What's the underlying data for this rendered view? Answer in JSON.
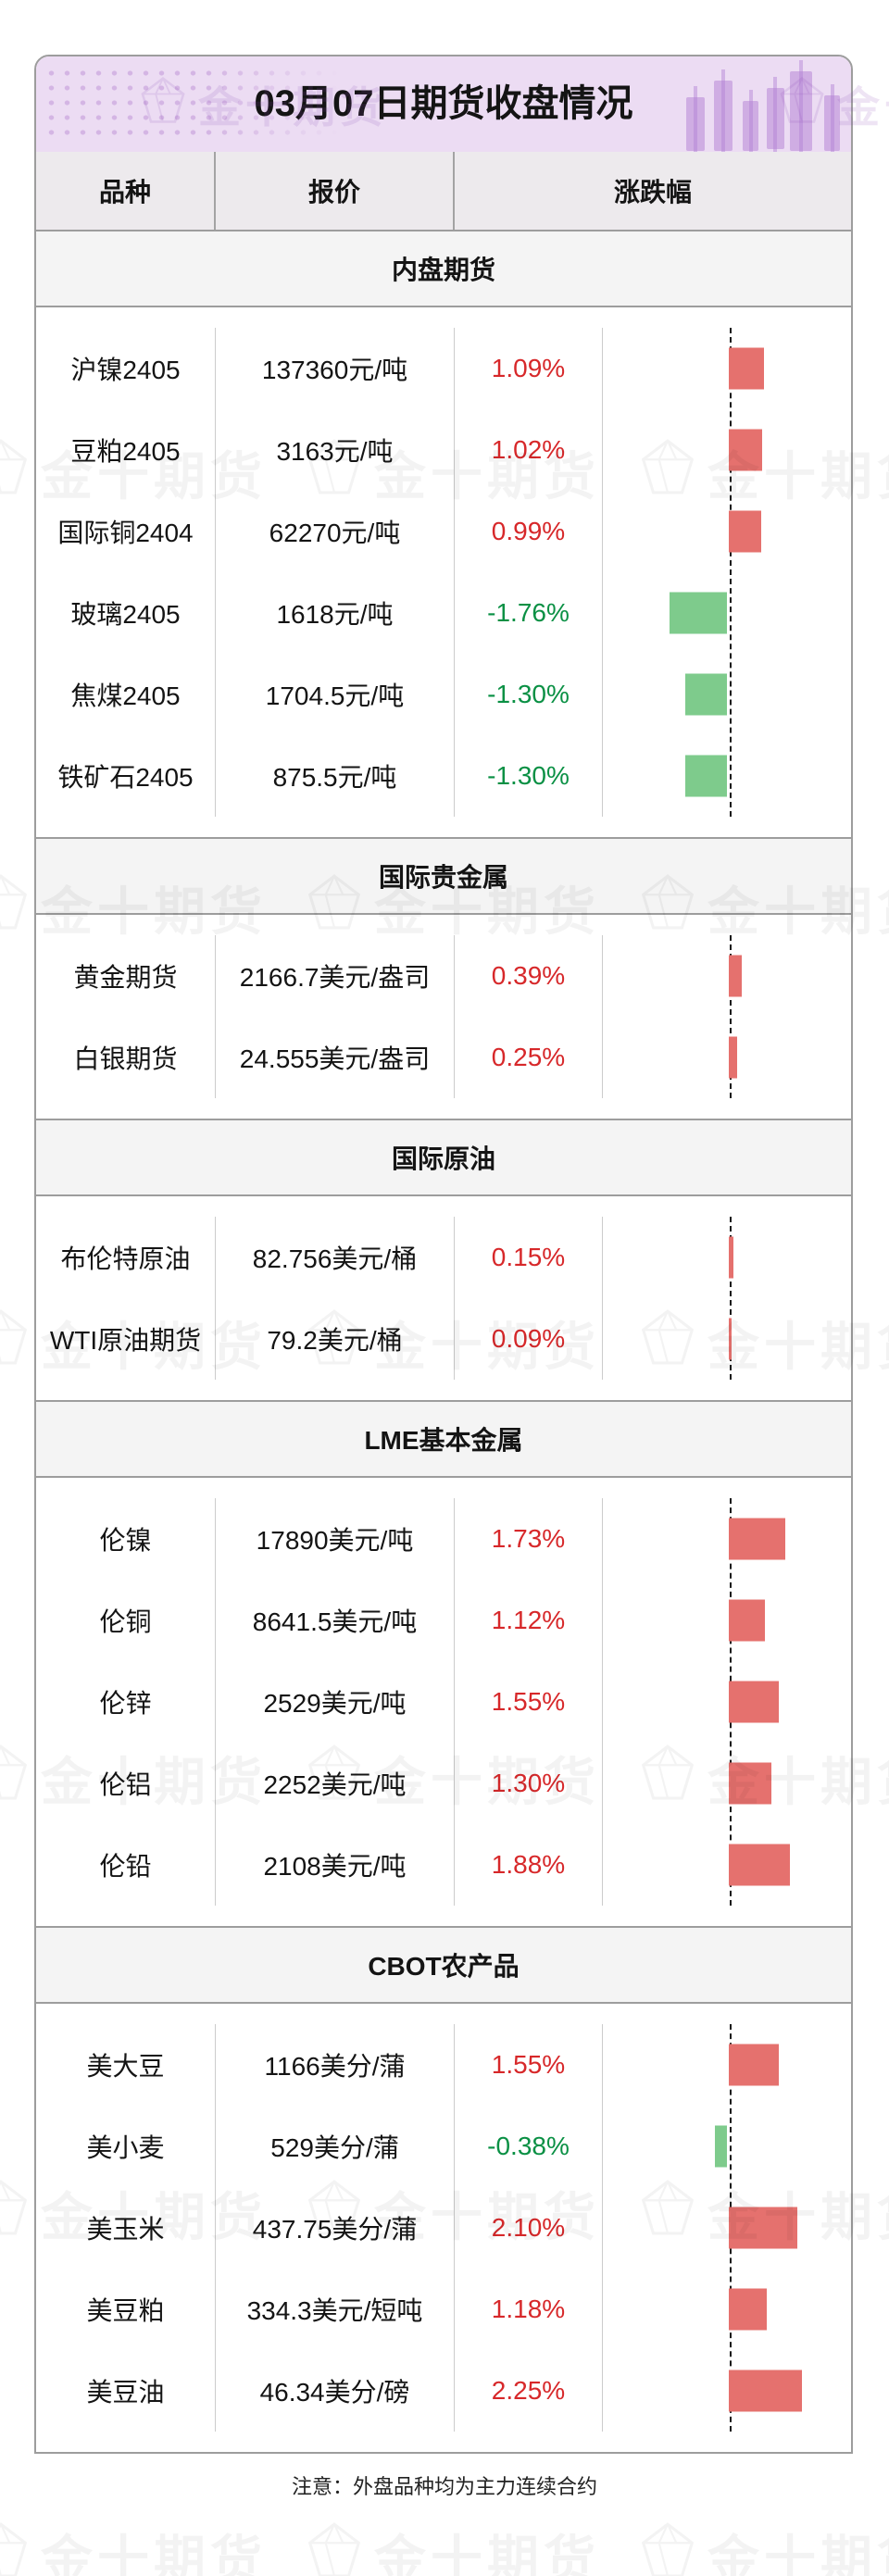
{
  "title": "03月07日期货收盘情况",
  "table": {
    "columns": {
      "variety": "品种",
      "quote": "报价",
      "change": "涨跌幅"
    }
  },
  "sections": [
    {
      "name": "内盘期货",
      "rows": [
        {
          "variety": "沪镍2405",
          "quote": "137360元/吨",
          "change": "1.09%",
          "pct": 1.09
        },
        {
          "variety": "豆粕2405",
          "quote": "3163元/吨",
          "change": "1.02%",
          "pct": 1.02
        },
        {
          "variety": "国际铜2404",
          "quote": "62270元/吨",
          "change": "0.99%",
          "pct": 0.99
        },
        {
          "variety": "玻璃2405",
          "quote": "1618元/吨",
          "change": "-1.76%",
          "pct": -1.76
        },
        {
          "variety": "焦煤2405",
          "quote": "1704.5元/吨",
          "change": "-1.30%",
          "pct": -1.3
        },
        {
          "variety": "铁矿石2405",
          "quote": "875.5元/吨",
          "change": "-1.30%",
          "pct": -1.3
        }
      ]
    },
    {
      "name": "国际贵金属",
      "rows": [
        {
          "variety": "黄金期货",
          "quote": "2166.7美元/盎司",
          "change": "0.39%",
          "pct": 0.39
        },
        {
          "variety": "白银期货",
          "quote": "24.555美元/盎司",
          "change": "0.25%",
          "pct": 0.25
        }
      ]
    },
    {
      "name": "国际原油",
      "rows": [
        {
          "variety": "布伦特原油",
          "quote": "82.756美元/桶",
          "change": "0.15%",
          "pct": 0.15
        },
        {
          "variety": "WTI原油期货",
          "quote": "79.2美元/桶",
          "change": "0.09%",
          "pct": 0.09
        }
      ]
    },
    {
      "name": "LME基本金属",
      "rows": [
        {
          "variety": "伦镍",
          "quote": "17890美元/吨",
          "change": "1.73%",
          "pct": 1.73
        },
        {
          "variety": "伦铜",
          "quote": "8641.5美元/吨",
          "change": "1.12%",
          "pct": 1.12
        },
        {
          "variety": "伦锌",
          "quote": "2529美元/吨",
          "change": "1.55%",
          "pct": 1.55
        },
        {
          "variety": "伦铝",
          "quote": "2252美元/吨",
          "change": "1.30%",
          "pct": 1.3
        },
        {
          "variety": "伦铅",
          "quote": "2108美元/吨",
          "change": "1.88%",
          "pct": 1.88
        }
      ]
    },
    {
      "name": "CBOT农产品",
      "rows": [
        {
          "variety": "美大豆",
          "quote": "1166美分/蒲",
          "change": "1.55%",
          "pct": 1.55
        },
        {
          "variety": "美小麦",
          "quote": "529美分/蒲",
          "change": "-0.38%",
          "pct": -0.38
        },
        {
          "variety": "美玉米",
          "quote": "437.75美分/蒲",
          "change": "2.10%",
          "pct": 2.1
        },
        {
          "variety": "美豆粕",
          "quote": "334.3美元/短吨",
          "change": "1.18%",
          "pct": 1.18
        },
        {
          "variety": "美豆油",
          "quote": "46.34美分/磅",
          "change": "2.25%",
          "pct": 2.25
        }
      ]
    }
  ],
  "footer": {
    "note": "注意：外盘品种均为主力连续合约"
  },
  "watermark": {
    "text": "金十期货"
  },
  "colors": {
    "up_bar": "#e5716e",
    "down_bar": "#7ecb8c",
    "up_text": "#d7282a",
    "down_text": "#0a9044",
    "header_band": "#ecdcf3",
    "table_grey": "#f4f4f4"
  },
  "chart_data": {
    "type": "bar",
    "orientation": "horizontal",
    "title": "涨跌幅",
    "unit": "%",
    "zero_line": "dashed",
    "xlim": [
      -2.5,
      2.5
    ],
    "up_color": "#e5716e",
    "down_color": "#7ecb8c",
    "groups": [
      {
        "name": "内盘期货",
        "categories": [
          "沪镍2405",
          "豆粕2405",
          "国际铜2404",
          "玻璃2405",
          "焦煤2405",
          "铁矿石2405"
        ],
        "values": [
          1.09,
          1.02,
          0.99,
          -1.76,
          -1.3,
          -1.3
        ]
      },
      {
        "name": "国际贵金属",
        "categories": [
          "黄金期货",
          "白银期货"
        ],
        "values": [
          0.39,
          0.25
        ]
      },
      {
        "name": "国际原油",
        "categories": [
          "布伦特原油",
          "WTI原油期货"
        ],
        "values": [
          0.15,
          0.09
        ]
      },
      {
        "name": "LME基本金属",
        "categories": [
          "伦镍",
          "伦铜",
          "伦锌",
          "伦铝",
          "伦铅"
        ],
        "values": [
          1.73,
          1.12,
          1.55,
          1.3,
          1.88
        ]
      },
      {
        "name": "CBOT农产品",
        "categories": [
          "美大豆",
          "美小麦",
          "美玉米",
          "美豆粕",
          "美豆油"
        ],
        "values": [
          1.55,
          -0.38,
          2.1,
          1.18,
          2.25
        ]
      }
    ]
  }
}
